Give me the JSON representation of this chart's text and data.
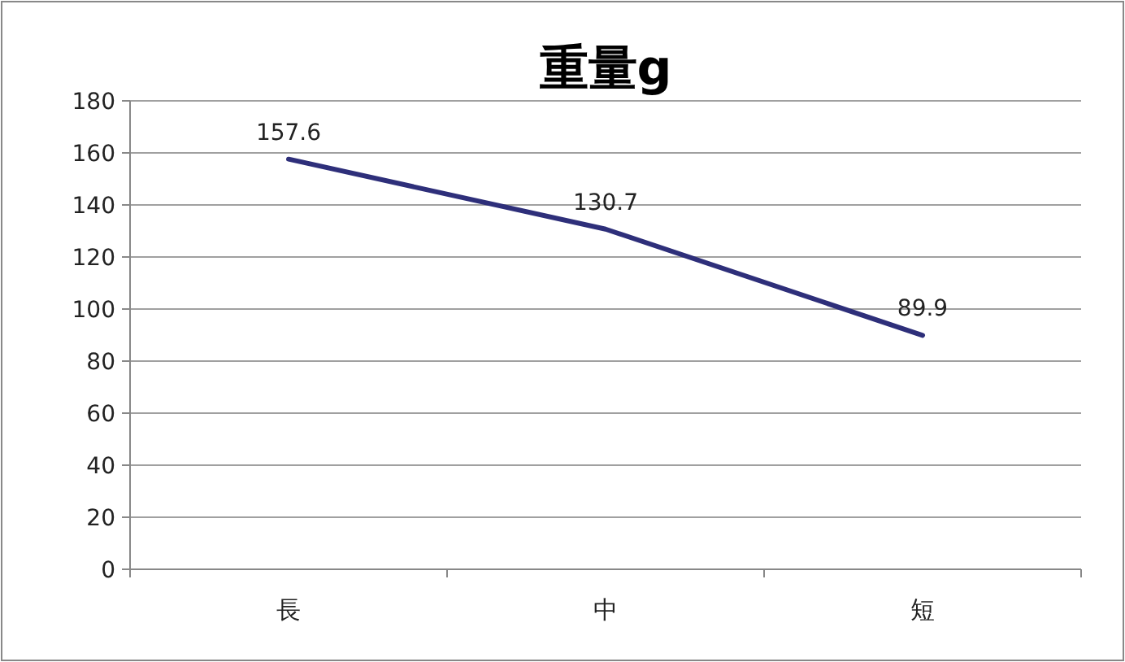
{
  "chart_data": {
    "type": "line",
    "title": "重量g",
    "categories": [
      "長",
      "中",
      "短"
    ],
    "series": [
      {
        "color": "#2e2f7a",
        "values": [
          157.6,
          130.7,
          89.9
        ]
      }
    ],
    "ylim": [
      0,
      180
    ],
    "yticks": [
      0,
      20,
      40,
      60,
      80,
      100,
      120,
      140,
      160,
      180
    ],
    "grid": "y",
    "data_labels": true,
    "marker": "none"
  }
}
